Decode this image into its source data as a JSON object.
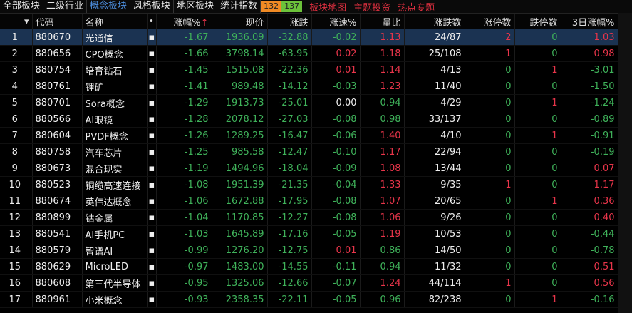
{
  "tabs": [
    "全部板块",
    "二级行业",
    "概念板块",
    "风格板块",
    "地区板块",
    "统计指数"
  ],
  "active_tab": 2,
  "up_count": "132",
  "down_count": "137",
  "links": [
    "板块地图",
    "主题投资",
    "热点专题"
  ],
  "headers": [
    "",
    "代码",
    "名称",
    "•",
    "涨幅%",
    "现价",
    "涨跌",
    "涨速%",
    "量比",
    "涨跌数",
    "涨停数",
    "跌停数",
    "3日涨幅%"
  ],
  "sort_indicator": "↑",
  "colors": {
    "up": "#e8354a",
    "down": "#3fb25a",
    "selected_row": "#1b3352",
    "active_tab": "#4d8fe0"
  },
  "rows": [
    [
      "1",
      "880670",
      "光通信",
      "-1.67",
      "1936.09",
      "-32.88",
      "-0.02",
      "1.13",
      "24/87",
      "2",
      "0",
      "1.03"
    ],
    [
      "2",
      "880656",
      "CPO概念",
      "-1.66",
      "3798.14",
      "-63.95",
      "0.02",
      "1.18",
      "25/108",
      "1",
      "0",
      "0.98"
    ],
    [
      "3",
      "880754",
      "培育钻石",
      "-1.45",
      "1515.08",
      "-22.36",
      "0.01",
      "1.14",
      "4/13",
      "0",
      "1",
      "-3.01"
    ],
    [
      "4",
      "880761",
      "锂矿",
      "-1.41",
      "989.48",
      "-14.12",
      "-0.03",
      "1.23",
      "11/40",
      "0",
      "0",
      "-1.50"
    ],
    [
      "5",
      "880701",
      "Sora概念",
      "-1.29",
      "1913.73",
      "-25.01",
      "0.00",
      "0.94",
      "4/29",
      "0",
      "1",
      "-1.24"
    ],
    [
      "6",
      "880566",
      "AI眼镜",
      "-1.28",
      "2078.12",
      "-27.03",
      "-0.08",
      "0.98",
      "33/137",
      "0",
      "0",
      "-0.89"
    ],
    [
      "7",
      "880604",
      "PVDF概念",
      "-1.26",
      "1289.25",
      "-16.47",
      "-0.06",
      "1.40",
      "4/10",
      "0",
      "1",
      "-0.91"
    ],
    [
      "8",
      "880758",
      "汽车芯片",
      "-1.25",
      "985.58",
      "-12.47",
      "-0.10",
      "1.17",
      "22/94",
      "0",
      "0",
      "-0.19"
    ],
    [
      "9",
      "880673",
      "混合现实",
      "-1.19",
      "1494.96",
      "-18.04",
      "-0.09",
      "1.08",
      "13/44",
      "0",
      "0",
      "0.07"
    ],
    [
      "10",
      "880523",
      "铜缆高速连接",
      "-1.08",
      "1951.39",
      "-21.35",
      "-0.04",
      "1.33",
      "9/35",
      "1",
      "0",
      "1.17"
    ],
    [
      "11",
      "880674",
      "英伟达概念",
      "-1.06",
      "1672.88",
      "-17.95",
      "-0.08",
      "1.07",
      "20/65",
      "0",
      "1",
      "0.36"
    ],
    [
      "12",
      "880899",
      "钴金属",
      "-1.04",
      "1170.85",
      "-12.27",
      "-0.08",
      "1.06",
      "9/26",
      "0",
      "0",
      "0.40"
    ],
    [
      "13",
      "880541",
      "AI手机PC",
      "-1.03",
      "1645.89",
      "-17.16",
      "-0.05",
      "1.19",
      "10/53",
      "0",
      "0",
      "-0.44"
    ],
    [
      "14",
      "880579",
      "智谱AI",
      "-0.99",
      "1276.20",
      "-12.75",
      "0.01",
      "0.86",
      "14/50",
      "0",
      "0",
      "-0.78"
    ],
    [
      "15",
      "880629",
      "MicroLED",
      "-0.97",
      "1483.00",
      "-14.55",
      "-0.11",
      "0.94",
      "11/32",
      "0",
      "0",
      "0.51"
    ],
    [
      "16",
      "880608",
      "第三代半导体",
      "-0.95",
      "1325.06",
      "-12.66",
      "-0.07",
      "1.24",
      "44/114",
      "1",
      "0",
      "0.56"
    ],
    [
      "17",
      "880961",
      "小米概念",
      "-0.93",
      "2358.35",
      "-22.11",
      "-0.05",
      "0.96",
      "82/238",
      "0",
      "1",
      "-0.16"
    ]
  ]
}
